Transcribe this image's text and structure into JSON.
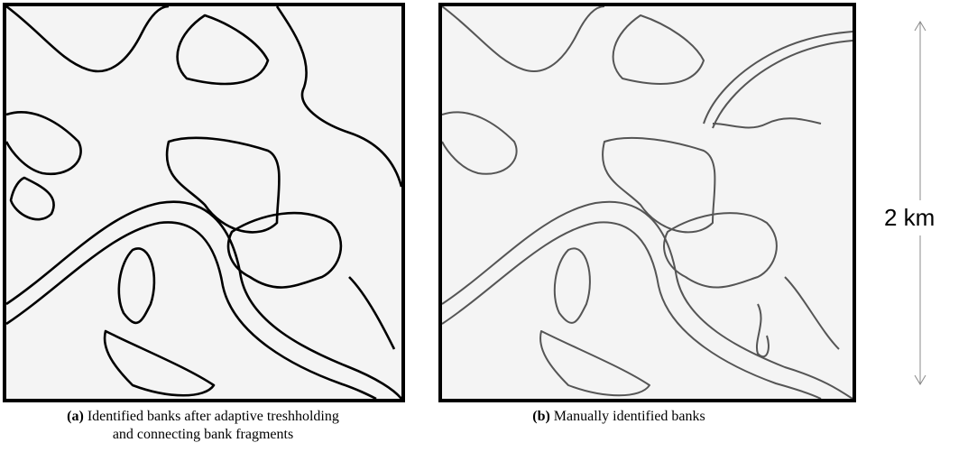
{
  "panels": [
    {
      "label": "(a)",
      "caption": "Identified banks after adaptive treshholding and connecting bank fragments"
    },
    {
      "label": "(b)",
      "caption": "Manually identified banks"
    }
  ],
  "scale": {
    "label": "2 km"
  }
}
